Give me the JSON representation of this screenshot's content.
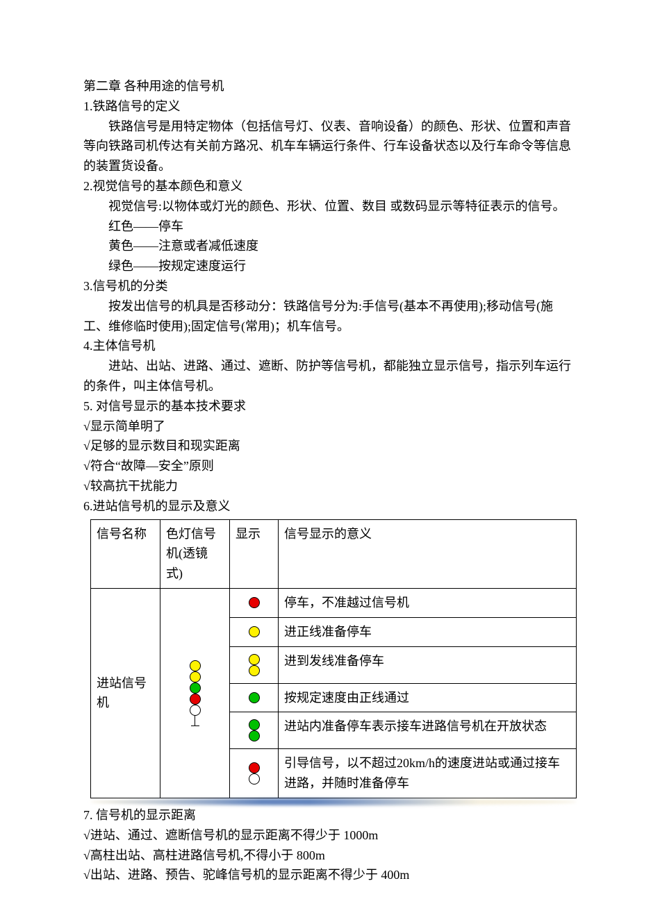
{
  "chapter_title": "第二章  各种用途的信号机",
  "s1_heading": "1.铁路信号的定义",
  "s1_body": "铁路信号是用特定物体（包括信号灯、仪表、音响设备）的颜色、形状、位置和声音等向铁路司机传达有关前方路况、机车车辆运行条件、行车设备状态以及行车命令等信息的装置货设备。",
  "s2_heading": "2.视觉信号的基本颜色和意义",
  "s2_body": "视觉信号:以物体或灯光的颜色、形状、位置、数目     或数码显示等特征表示的信号。",
  "s2_red": "红色——停车",
  "s2_yellow": "黄色——注意或者减低速度",
  "s2_green": "绿色——按规定速度运行",
  "s3_heading": "3.信号机的分类",
  "s3_body": "按发出信号的机具是否移动分：铁路信号分为:手信号(基本不再使用);移动信号(施工、维修临时使用);固定信号(常用)；机车信号。",
  "s4_heading": "4.主体信号机",
  "s4_body": "进站、出站、进路、通过、遮断、防护等信号机，都能独立显示信号，指示列车运行的条件，叫主体信号机。",
  "s5_heading": "5.  对信号显示的基本技术要求",
  "s5_items": [
    "√显示简单明了",
    "√足够的显示数目和现实距离",
    "√符合“故障—安全”原则",
    "√较高抗干扰能力"
  ],
  "s6_heading": "6.进站信号机的显示及意义",
  "table": {
    "headers": [
      "信号名称",
      "色灯信号机(透镜式)",
      "显示",
      "信号显示的意义"
    ],
    "row_label": "进站信号机",
    "lamp_stack_colors": [
      "#fff200",
      "#fff200",
      "#00c000",
      "#e60000",
      "#ffffff"
    ],
    "rows": [
      {
        "display": [
          "#e60000"
        ],
        "meaning": "停车，不准越过信号机"
      },
      {
        "display": [
          "#fff200"
        ],
        "meaning": "进正线准备停车"
      },
      {
        "display": [
          "#fff200",
          "#fff200"
        ],
        "meaning": "进到发线准备停车"
      },
      {
        "display": [
          "#00c000"
        ],
        "meaning": "按规定速度由正线通过"
      },
      {
        "display": [
          "#00c000",
          "#00c000"
        ],
        "meaning": "进站内准备停车表示接车进路信号机在开放状态"
      },
      {
        "display": [
          "#e60000",
          "#ffffff"
        ],
        "meaning": "引导信号，以不超过20km/h的速度进站或通过接车进路，并随时准备停车"
      }
    ]
  },
  "s7_heading": "7.  信号机的显示距离",
  "s7_items": [
    "√进站、通过、遮断信号机的显示距离不得少于 1000m",
    "√高柱出站、高柱进路信号机,不得小于 800m",
    "√出站、进路、预告、驼峰信号机的显示距离不得少于 400m"
  ],
  "colors": {
    "red": "#e60000",
    "yellow": "#fff200",
    "green": "#00c000",
    "white": "#ffffff",
    "border": "#000000"
  }
}
